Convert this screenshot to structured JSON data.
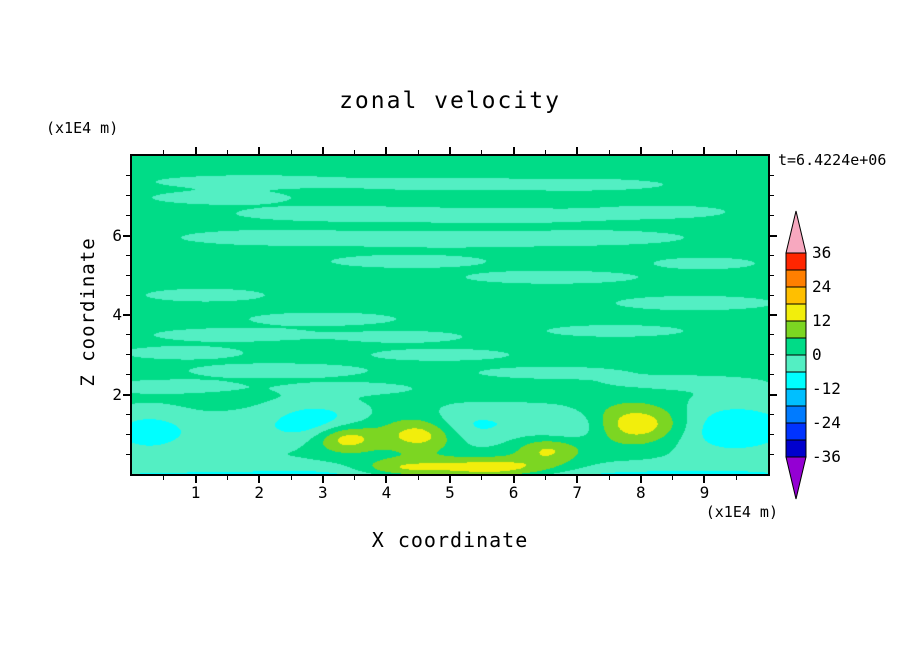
{
  "title": "zonal velocity",
  "labels": {
    "y_unit": "(x1E4 m)",
    "x_unit": "(x1E4 m)",
    "xlabel": "X coordinate",
    "ylabel": "Z coordinate",
    "time": "t=6.4224e+06"
  },
  "chart_data": {
    "type": "heatmap",
    "subtype": "filled_contour",
    "title": "zonal velocity",
    "xlabel": "X coordinate (x1E4 m)",
    "ylabel": "Z coordinate (x1E4 m)",
    "time_annotation": "t=6.4224e+06",
    "x_range": [
      0,
      10
    ],
    "z_range": [
      0,
      8
    ],
    "x_ticks": [
      1,
      2,
      3,
      4,
      5,
      6,
      7,
      8,
      9
    ],
    "z_ticks": [
      2,
      4,
      6
    ],
    "grid": false,
    "legend_position": "right-colorbar",
    "levels": [
      -36,
      -30,
      -24,
      -18,
      -12,
      -6,
      0,
      6,
      12,
      18,
      24,
      30,
      36
    ],
    "palette": [
      "#9400D3",
      "#0000CD",
      "#0033FF",
      "#007BFF",
      "#00BFFF",
      "#00FFFF",
      "#53EFC3",
      "#00DC87",
      "#7CD622",
      "#F2EE0C",
      "#FFBF00",
      "#FF7F00",
      "#FF2600",
      "#F7A8BF"
    ],
    "colorbar_labels": [
      36,
      24,
      12,
      0,
      -12,
      -24,
      -36
    ],
    "field": {
      "base": 2,
      "anomaly_format": [
        "x",
        "z",
        "sx",
        "sz",
        "amp"
      ],
      "anomalies": [
        [
          5.0,
          -0.2,
          6.5,
          0.3,
          -13
        ],
        [
          5.6,
          0.12,
          0.8,
          0.2,
          20
        ],
        [
          4.2,
          0.12,
          0.5,
          0.18,
          12
        ],
        [
          0.25,
          1.05,
          0.5,
          0.4,
          -11
        ],
        [
          2.9,
          1.3,
          0.55,
          0.38,
          -12
        ],
        [
          5.15,
          1.15,
          0.5,
          0.35,
          -11
        ],
        [
          7.05,
          1.2,
          0.45,
          0.3,
          -8
        ],
        [
          9.45,
          1.15,
          0.8,
          0.5,
          -13
        ],
        [
          1.6,
          1.05,
          0.55,
          0.35,
          -5
        ],
        [
          6.2,
          1.35,
          0.5,
          0.3,
          -5
        ],
        [
          3.35,
          0.9,
          0.35,
          0.25,
          16
        ],
        [
          4.6,
          1.0,
          0.45,
          0.3,
          17
        ],
        [
          7.95,
          1.25,
          0.55,
          0.35,
          17
        ],
        [
          6.55,
          0.6,
          0.35,
          0.22,
          11
        ],
        [
          1.9,
          7.35,
          1.1,
          0.12,
          -5.2
        ],
        [
          4.7,
          7.3,
          0.9,
          0.11,
          -5.0
        ],
        [
          7.0,
          7.28,
          1.0,
          0.11,
          -5.0
        ],
        [
          1.4,
          6.95,
          0.8,
          0.12,
          -5.0
        ],
        [
          3.2,
          6.55,
          1.1,
          0.13,
          -5.4
        ],
        [
          5.9,
          6.5,
          1.3,
          0.13,
          -5.4
        ],
        [
          8.35,
          6.6,
          0.7,
          0.11,
          -5.0
        ],
        [
          2.2,
          5.95,
          1.0,
          0.13,
          -5.4
        ],
        [
          5.0,
          5.9,
          1.4,
          0.14,
          -5.5
        ],
        [
          7.4,
          5.95,
          0.9,
          0.12,
          -5.0
        ],
        [
          4.35,
          5.35,
          0.9,
          0.12,
          -5.0
        ],
        [
          9.0,
          5.3,
          0.6,
          0.11,
          -4.8
        ],
        [
          6.6,
          4.95,
          1.0,
          0.12,
          -5.0
        ],
        [
          1.15,
          4.5,
          0.7,
          0.12,
          -4.9
        ],
        [
          8.85,
          4.3,
          0.9,
          0.13,
          -5.2
        ],
        [
          3.0,
          3.9,
          0.85,
          0.12,
          -5.0
        ],
        [
          7.6,
          3.6,
          0.8,
          0.11,
          -4.9
        ],
        [
          1.6,
          3.5,
          0.9,
          0.12,
          -5.3
        ],
        [
          4.25,
          3.45,
          0.7,
          0.11,
          -4.9
        ],
        [
          0.8,
          3.05,
          0.7,
          0.12,
          -5.0
        ],
        [
          4.85,
          3.0,
          0.8,
          0.11,
          -5.0
        ],
        [
          2.3,
          2.6,
          1.0,
          0.13,
          -5.3
        ],
        [
          6.6,
          2.55,
          0.85,
          0.11,
          -4.9
        ],
        [
          0.6,
          2.2,
          0.8,
          0.12,
          -5.0
        ],
        [
          3.45,
          2.15,
          0.7,
          0.11,
          -4.9
        ],
        [
          8.6,
          2.3,
          0.85,
          0.12,
          -5.1
        ]
      ]
    }
  }
}
